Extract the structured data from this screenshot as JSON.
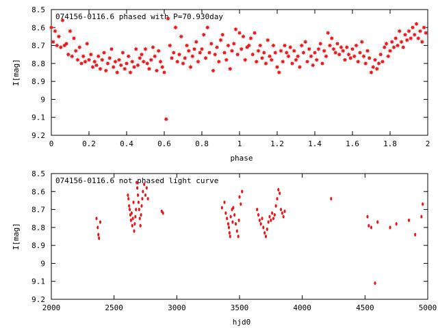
{
  "chart_data": [
    {
      "type": "scatter",
      "title": "074156-0116.6 phased with P=70.930day",
      "xlabel": "phase",
      "ylabel": "I[mag]",
      "xlim": [
        0,
        2
      ],
      "ylim": [
        8.5,
        9.2
      ],
      "y_inverted": true,
      "x_ticks": [
        0,
        0.2,
        0.4,
        0.6,
        0.8,
        1,
        1.2,
        1.4,
        1.6,
        1.8,
        2
      ],
      "x_tick_labels": [
        "0",
        "0.2",
        "0.4",
        "0.6",
        "0.8",
        "1",
        "1.2",
        "1.4",
        "1.6",
        "1.8",
        "2"
      ],
      "y_ticks": [
        8.5,
        8.6,
        8.7,
        8.8,
        8.9,
        9.0,
        9.1,
        9.2
      ],
      "y_tick_labels": [
        "8.5",
        "8.6",
        "8.7",
        "8.8",
        "8.9",
        "9",
        "9.1",
        "9.2"
      ],
      "marker_color": "#e8181c",
      "series": [
        {
          "x": [
            0.0,
            0.01,
            0.02,
            0.03,
            0.04,
            0.05,
            0.06,
            0.07,
            0.08,
            0.09,
            0.1,
            0.11,
            0.12,
            0.13,
            0.14,
            0.15,
            0.16,
            0.17,
            0.18,
            0.19,
            0.2,
            0.21,
            0.22,
            0.23,
            0.24,
            0.25,
            0.26,
            0.27,
            0.28,
            0.29,
            0.3,
            0.31,
            0.32,
            0.33,
            0.34,
            0.35,
            0.36,
            0.37,
            0.38,
            0.39,
            0.4,
            0.41,
            0.42,
            0.43,
            0.44,
            0.45,
            0.46,
            0.47,
            0.48,
            0.49,
            0.5,
            0.51,
            0.52,
            0.53,
            0.54,
            0.55,
            0.56,
            0.57,
            0.58,
            0.59,
            0.6,
            0.61,
            0.62,
            0.63,
            0.64,
            0.65,
            0.66,
            0.67,
            0.68,
            0.69,
            0.7,
            0.71,
            0.72,
            0.73,
            0.74,
            0.75,
            0.76,
            0.77,
            0.78,
            0.79,
            0.8,
            0.81,
            0.82,
            0.83,
            0.84,
            0.85,
            0.86,
            0.87,
            0.88,
            0.89,
            0.9,
            0.91,
            0.92,
            0.93,
            0.94,
            0.95,
            0.96,
            0.97,
            0.98,
            0.99,
            1.0,
            1.01,
            1.02,
            1.03,
            1.04,
            1.05,
            1.06,
            1.07,
            1.08,
            1.09,
            1.1,
            1.11,
            1.12,
            1.13,
            1.14,
            1.15,
            1.16,
            1.17,
            1.18,
            1.19,
            1.2,
            1.21,
            1.22,
            1.23,
            1.24,
            1.25,
            1.26,
            1.27,
            1.28,
            1.29,
            1.3,
            1.31,
            1.32,
            1.33,
            1.34,
            1.35,
            1.36,
            1.37,
            1.38,
            1.39,
            1.4,
            1.41,
            1.42,
            1.43,
            1.44,
            1.45,
            1.46,
            1.47,
            1.48,
            1.49,
            1.5,
            1.51,
            1.52,
            1.53,
            1.54,
            1.55,
            1.56,
            1.57,
            1.58,
            1.59,
            1.6,
            1.61,
            1.62,
            1.63,
            1.64,
            1.65,
            1.66,
            1.67,
            1.68,
            1.69,
            1.7,
            1.71,
            1.72,
            1.73,
            1.74,
            1.75,
            1.76,
            1.77,
            1.78,
            1.79,
            1.8,
            1.81,
            1.82,
            1.83,
            1.84,
            1.85,
            1.86,
            1.87,
            1.88,
            1.89,
            1.9,
            1.91,
            1.92,
            1.93,
            1.94,
            1.95,
            1.96,
            1.97,
            1.98,
            1.99
          ],
          "y": [
            8.6,
            8.68,
            8.62,
            8.7,
            8.65,
            8.71,
            8.56,
            8.7,
            8.69,
            8.75,
            8.62,
            8.76,
            8.66,
            8.73,
            8.78,
            8.71,
            8.8,
            8.76,
            8.79,
            8.69,
            8.78,
            8.75,
            8.82,
            8.79,
            8.81,
            8.76,
            8.83,
            8.78,
            8.74,
            8.84,
            8.8,
            8.77,
            8.72,
            8.82,
            8.79,
            8.85,
            8.78,
            8.81,
            8.74,
            8.83,
            8.8,
            8.76,
            8.85,
            8.79,
            8.82,
            8.72,
            8.81,
            8.77,
            8.75,
            8.79,
            8.72,
            8.8,
            8.83,
            8.78,
            8.71,
            8.76,
            8.84,
            8.73,
            8.79,
            8.82,
            8.85,
            9.11,
            8.55,
            8.7,
            8.77,
            8.74,
            8.6,
            8.79,
            8.75,
            8.65,
            8.8,
            8.77,
            8.7,
            8.73,
            8.82,
            8.76,
            8.72,
            8.68,
            8.79,
            8.74,
            8.72,
            8.64,
            8.77,
            8.6,
            8.74,
            8.69,
            8.84,
            8.75,
            8.71,
            8.79,
            8.67,
            8.64,
            8.74,
            8.78,
            8.7,
            8.83,
            8.73,
            8.69,
            8.61,
            8.75,
            8.63,
            8.72,
            8.65,
            8.78,
            8.71,
            8.7,
            8.66,
            8.75,
            8.63,
            8.79,
            8.73,
            8.7,
            8.77,
            8.74,
            8.8,
            8.67,
            8.76,
            8.78,
            8.7,
            8.74,
            8.82,
            8.85,
            8.73,
            8.79,
            8.7,
            8.74,
            8.76,
            8.71,
            8.8,
            8.73,
            8.78,
            8.76,
            8.82,
            8.7,
            8.74,
            8.68,
            8.79,
            8.72,
            8.76,
            8.81,
            8.74,
            8.78,
            8.72,
            8.69,
            8.8,
            8.73,
            8.76,
            8.63,
            8.7,
            8.66,
            8.72,
            8.74,
            8.69,
            8.75,
            8.71,
            8.73,
            8.78,
            8.71,
            8.75,
            8.77,
            8.72,
            8.76,
            8.7,
            8.79,
            8.74,
            8.68,
            8.76,
            8.8,
            8.73,
            8.77,
            8.85,
            8.82,
            8.78,
            8.83,
            8.8,
            8.75,
            8.79,
            8.71,
            8.69,
            8.76,
            8.73,
            8.68,
            8.71,
            8.66,
            8.7,
            8.62,
            8.68,
            8.71,
            8.64,
            8.67,
            8.62,
            8.66,
            8.6,
            8.64,
            8.58,
            8.66,
            8.62,
            8.68,
            8.6,
            8.63
          ]
        }
      ]
    },
    {
      "type": "scatter",
      "title": "074156-0116.6 not phased light curve",
      "xlabel": "hjd0",
      "ylabel": "I[mag]",
      "xlim": [
        2000,
        5000
      ],
      "ylim": [
        8.5,
        9.2
      ],
      "y_inverted": true,
      "x_ticks": [
        2000,
        2500,
        3000,
        3500,
        4000,
        4500,
        5000
      ],
      "x_tick_labels": [
        "2000",
        "2500",
        "3000",
        "3500",
        "4000",
        "4500",
        "5000"
      ],
      "y_ticks": [
        8.5,
        8.6,
        8.7,
        8.8,
        8.9,
        9.0,
        9.1,
        9.2
      ],
      "y_tick_labels": [
        "8.5",
        "8.6",
        "8.7",
        "8.8",
        "8.9",
        "9",
        "9.1",
        "9.2"
      ],
      "marker_color": "#e8181c",
      "series": [
        {
          "x": [
            2360,
            2370,
            2375,
            2380,
            2390,
            2610,
            2615,
            2620,
            2625,
            2630,
            2635,
            2640,
            2645,
            2650,
            2655,
            2660,
            2665,
            2670,
            2675,
            2680,
            2685,
            2690,
            2695,
            2700,
            2705,
            2710,
            2715,
            2720,
            2725,
            2730,
            2740,
            2750,
            2760,
            2770,
            2880,
            2890,
            3360,
            3380,
            3390,
            3400,
            3410,
            3415,
            3420,
            3425,
            3430,
            3440,
            3445,
            3450,
            3460,
            3470,
            3480,
            3490,
            3495,
            3500,
            3510,
            3520,
            3640,
            3650,
            3660,
            3670,
            3680,
            3690,
            3700,
            3710,
            3720,
            3730,
            3740,
            3750,
            3760,
            3770,
            3780,
            3790,
            3800,
            3810,
            3820,
            3830,
            3840,
            3850,
            3860,
            4230,
            4520,
            4530,
            4550,
            4580,
            4600,
            4700,
            4750,
            4850,
            4900,
            4950,
            4960
          ],
          "y": [
            8.75,
            8.8,
            8.84,
            8.86,
            8.77,
            8.62,
            8.64,
            8.68,
            8.7,
            8.73,
            8.76,
            8.72,
            8.79,
            8.75,
            8.66,
            8.82,
            8.78,
            8.74,
            8.7,
            8.55,
            8.58,
            8.62,
            8.66,
            8.7,
            8.75,
            8.79,
            8.73,
            8.68,
            8.64,
            8.6,
            8.56,
            8.62,
            8.58,
            8.64,
            8.71,
            8.72,
            8.69,
            8.66,
            8.72,
            8.75,
            8.78,
            8.8,
            8.83,
            8.85,
            8.74,
            8.7,
            8.77,
            8.69,
            8.73,
            8.78,
            8.82,
            8.85,
            8.76,
            8.63,
            8.67,
            8.6,
            8.7,
            8.73,
            8.76,
            8.78,
            8.75,
            8.8,
            8.83,
            8.85,
            8.81,
            8.77,
            8.74,
            8.76,
            8.72,
            8.75,
            8.73,
            8.68,
            8.64,
            8.59,
            8.61,
            8.7,
            8.72,
            8.74,
            8.71,
            8.64,
            8.74,
            8.79,
            8.8,
            9.11,
            8.77,
            8.8,
            8.78,
            8.76,
            8.84,
            8.74,
            8.67
          ]
        }
      ]
    }
  ]
}
